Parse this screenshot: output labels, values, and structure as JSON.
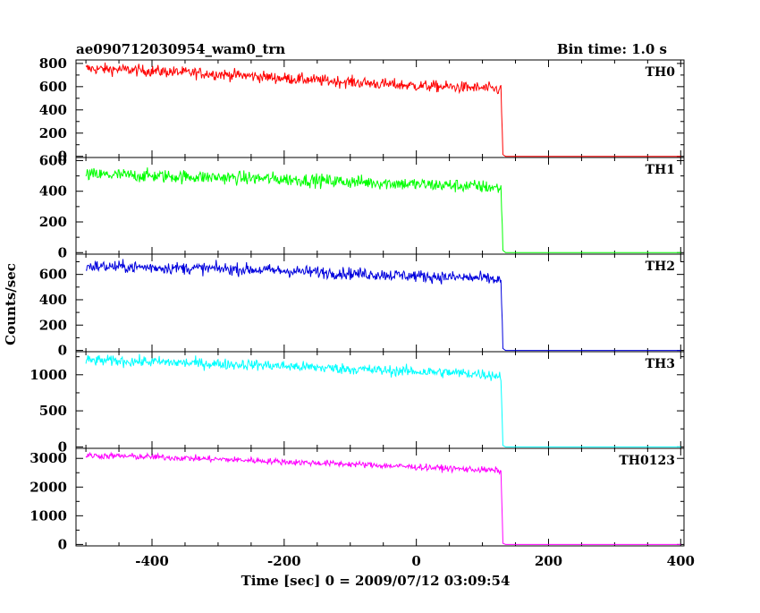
{
  "chart_data": {
    "type": "line",
    "title": "ae090712030954_wam0_trn",
    "bin_time_label": "Bin time: 1.0 s",
    "xlabel": "Time [sec] 0 = 2009/07/12 03:09:54",
    "ylabel": "Counts/sec",
    "xlim": [
      -515,
      405
    ],
    "x_ticks": [
      -400,
      -200,
      0,
      200,
      400
    ],
    "grid": false,
    "legend": "none",
    "drop_time": 131,
    "x_start": -500,
    "x_end": 400,
    "series": [
      {
        "name": "TH0",
        "color": "#ff0000",
        "ylim": [
          -10,
          830
        ],
        "y_ticks": [
          0,
          200,
          400,
          600,
          800
        ],
        "x": [
          -500,
          -450,
          -400,
          -350,
          -300,
          -250,
          -200,
          -150,
          -100,
          -50,
          0,
          50,
          100,
          128,
          131,
          135,
          200,
          300,
          400
        ],
        "values": [
          755,
          748,
          735,
          722,
          708,
          692,
          672,
          655,
          640,
          622,
          608,
          598,
          588,
          575,
          15,
          0,
          0,
          0,
          0
        ],
        "noise": 25
      },
      {
        "name": "TH1",
        "color": "#00ff00",
        "ylim": [
          -10,
          620
        ],
        "y_ticks": [
          0,
          200,
          400,
          600
        ],
        "x": [
          -500,
          -450,
          -400,
          -350,
          -300,
          -250,
          -200,
          -150,
          -100,
          -50,
          0,
          50,
          100,
          128,
          131,
          135,
          200,
          300,
          400
        ],
        "values": [
          508,
          505,
          500,
          495,
          490,
          485,
          478,
          470,
          462,
          455,
          445,
          438,
          430,
          420,
          15,
          0,
          0,
          0,
          0
        ],
        "noise": 22
      },
      {
        "name": "TH2",
        "color": "#0000dd",
        "ylim": [
          -10,
          760
        ],
        "y_ticks": [
          0,
          200,
          400,
          600
        ],
        "x": [
          -500,
          -450,
          -400,
          -350,
          -300,
          -250,
          -200,
          -150,
          -100,
          -50,
          0,
          50,
          100,
          128,
          131,
          135,
          200,
          300,
          400
        ],
        "values": [
          665,
          660,
          655,
          650,
          645,
          638,
          628,
          618,
          608,
          598,
          588,
          578,
          570,
          555,
          15,
          0,
          0,
          0,
          0
        ],
        "noise": 24
      },
      {
        "name": "TH3",
        "color": "#00ffff",
        "ylim": [
          -20,
          1320
        ],
        "y_ticks": [
          0,
          500,
          1000
        ],
        "x": [
          -500,
          -450,
          -400,
          -350,
          -300,
          -250,
          -200,
          -150,
          -100,
          -50,
          0,
          50,
          100,
          128,
          131,
          135,
          200,
          300,
          400
        ],
        "values": [
          1200,
          1190,
          1180,
          1165,
          1150,
          1140,
          1120,
          1100,
          1080,
          1060,
          1045,
          1030,
          1010,
          980,
          20,
          0,
          0,
          0,
          0
        ],
        "noise": 38
      },
      {
        "name": "TH0123",
        "color": "#ff00ff",
        "ylim": [
          -50,
          3350
        ],
        "y_ticks": [
          0,
          1000,
          2000,
          3000
        ],
        "x": [
          -500,
          -450,
          -400,
          -350,
          -300,
          -250,
          -200,
          -150,
          -100,
          -50,
          0,
          50,
          100,
          128,
          131,
          135,
          200,
          300,
          400
        ],
        "values": [
          3100,
          3080,
          3050,
          3010,
          2970,
          2930,
          2880,
          2840,
          2800,
          2750,
          2700,
          2650,
          2600,
          2570,
          40,
          0,
          0,
          0,
          0
        ],
        "noise": 55
      }
    ]
  }
}
